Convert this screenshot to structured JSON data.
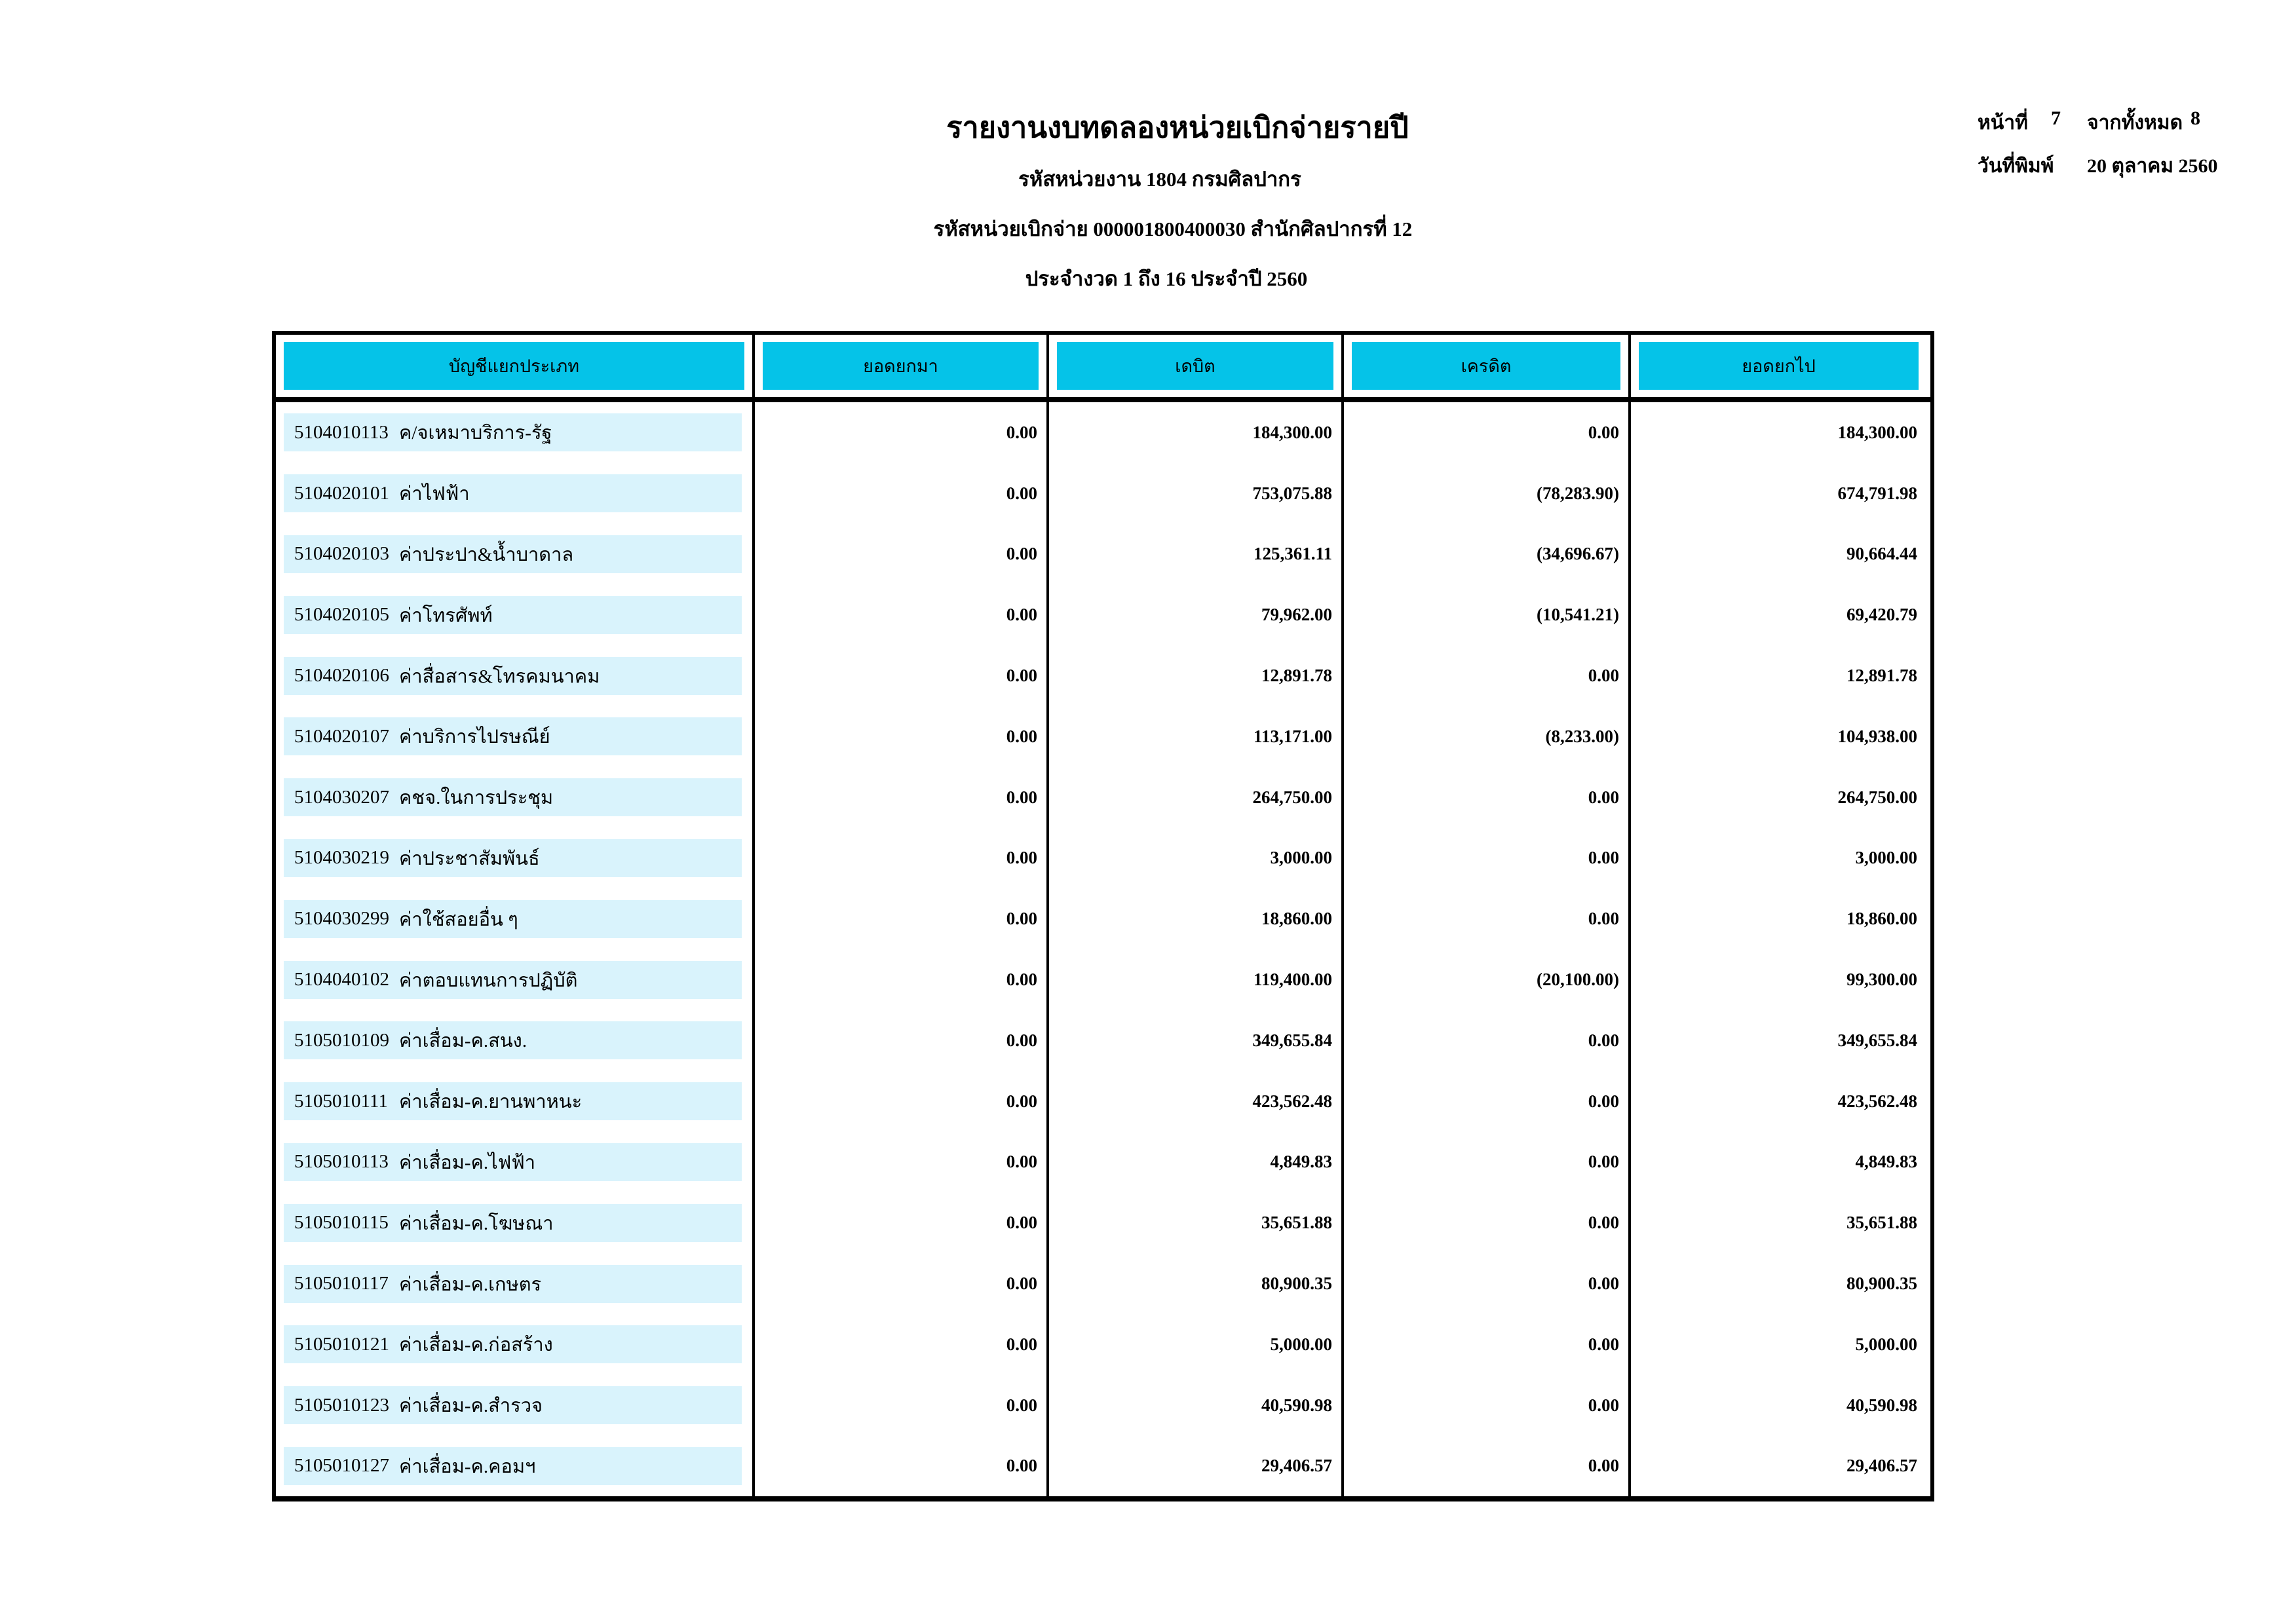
{
  "report": {
    "title": "รายงานงบทดลองหน่วยเบิกจ่ายรายปี",
    "agency_line": "รหัสหน่วยงาน 1804 กรมศิลปากร",
    "disbursement_line": "รหัสหน่วยเบิกจ่าย 000001800400030 สำนักศิลปากรที่ 12",
    "period_line": "ประจำงวด 1 ถึง 16 ประจำปี 2560"
  },
  "page_info": {
    "page_label": "หน้าที่",
    "page_number": "7",
    "total_label": "จากทั้งหมด",
    "total_pages": "8",
    "print_date_label": "วันที่พิมพ์",
    "print_date": "20 ตุลาคม 2560"
  },
  "colors": {
    "header_fill": "#05C3E8",
    "row_fill": "#D9F3FC"
  },
  "table": {
    "columns": [
      "บัญชีแยกประเภท",
      "ยอดยกมา",
      "เดบิต",
      "เครดิต",
      "ยอดยกไป"
    ],
    "rows": [
      {
        "code": "5104010113",
        "name": "ค/จเหมาบริการ-รัฐ",
        "balance_bf": "0.00",
        "debit": "184,300.00",
        "credit": "0.00",
        "balance_cf": "184,300.00"
      },
      {
        "code": "5104020101",
        "name": "ค่าไฟฟ้า",
        "balance_bf": "0.00",
        "debit": "753,075.88",
        "credit": "(78,283.90)",
        "balance_cf": "674,791.98"
      },
      {
        "code": "5104020103",
        "name": "ค่าประปา&น้ำบาดาล",
        "balance_bf": "0.00",
        "debit": "125,361.11",
        "credit": "(34,696.67)",
        "balance_cf": "90,664.44"
      },
      {
        "code": "5104020105",
        "name": "ค่าโทรศัพท์",
        "balance_bf": "0.00",
        "debit": "79,962.00",
        "credit": "(10,541.21)",
        "balance_cf": "69,420.79"
      },
      {
        "code": "5104020106",
        "name": "ค่าสื่อสาร&โทรคมนาคม",
        "balance_bf": "0.00",
        "debit": "12,891.78",
        "credit": "0.00",
        "balance_cf": "12,891.78"
      },
      {
        "code": "5104020107",
        "name": "ค่าบริการไปรษณีย์",
        "balance_bf": "0.00",
        "debit": "113,171.00",
        "credit": "(8,233.00)",
        "balance_cf": "104,938.00"
      },
      {
        "code": "5104030207",
        "name": "คชจ.ในการประชุม",
        "balance_bf": "0.00",
        "debit": "264,750.00",
        "credit": "0.00",
        "balance_cf": "264,750.00"
      },
      {
        "code": "5104030219",
        "name": "ค่าประชาสัมพันธ์",
        "balance_bf": "0.00",
        "debit": "3,000.00",
        "credit": "0.00",
        "balance_cf": "3,000.00"
      },
      {
        "code": "5104030299",
        "name": "ค่าใช้สอยอื่น ๆ",
        "balance_bf": "0.00",
        "debit": "18,860.00",
        "credit": "0.00",
        "balance_cf": "18,860.00"
      },
      {
        "code": "5104040102",
        "name": "ค่าตอบแทนการปฏิบัติ",
        "balance_bf": "0.00",
        "debit": "119,400.00",
        "credit": "(20,100.00)",
        "balance_cf": "99,300.00"
      },
      {
        "code": "5105010109",
        "name": "ค่าเสื่อม-ค.สนง.",
        "balance_bf": "0.00",
        "debit": "349,655.84",
        "credit": "0.00",
        "balance_cf": "349,655.84"
      },
      {
        "code": "5105010111",
        "name": "ค่าเสื่อม-ค.ยานพาหนะ",
        "balance_bf": "0.00",
        "debit": "423,562.48",
        "credit": "0.00",
        "balance_cf": "423,562.48"
      },
      {
        "code": "5105010113",
        "name": "ค่าเสื่อม-ค.ไฟฟ้า",
        "balance_bf": "0.00",
        "debit": "4,849.83",
        "credit": "0.00",
        "balance_cf": "4,849.83"
      },
      {
        "code": "5105010115",
        "name": "ค่าเสื่อม-ค.โฆษณา",
        "balance_bf": "0.00",
        "debit": "35,651.88",
        "credit": "0.00",
        "balance_cf": "35,651.88"
      },
      {
        "code": "5105010117",
        "name": "ค่าเสื่อม-ค.เกษตร",
        "balance_bf": "0.00",
        "debit": "80,900.35",
        "credit": "0.00",
        "balance_cf": "80,900.35"
      },
      {
        "code": "5105010121",
        "name": "ค่าเสื่อม-ค.ก่อสร้าง",
        "balance_bf": "0.00",
        "debit": "5,000.00",
        "credit": "0.00",
        "balance_cf": "5,000.00"
      },
      {
        "code": "5105010123",
        "name": "ค่าเสื่อม-ค.สำรวจ",
        "balance_bf": "0.00",
        "debit": "40,590.98",
        "credit": "0.00",
        "balance_cf": "40,590.98"
      },
      {
        "code": "5105010127",
        "name": "ค่าเสื่อม-ค.คอมฯ",
        "balance_bf": "0.00",
        "debit": "29,406.57",
        "credit": "0.00",
        "balance_cf": "29,406.57"
      }
    ]
  }
}
